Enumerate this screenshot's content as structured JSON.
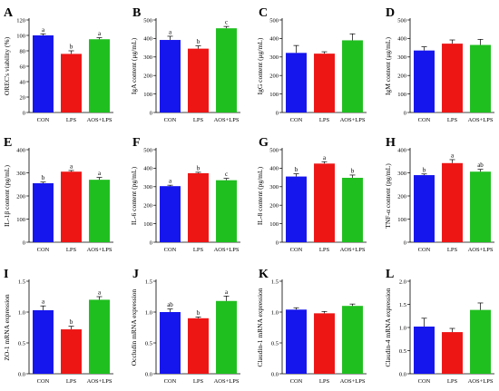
{
  "colors": {
    "CON": "#1515ee",
    "LPS": "#ee1515",
    "AOS+LPS": "#1fbf1f",
    "axis": "#000000"
  },
  "chart_data": [
    {
      "panel": "A",
      "type": "bar",
      "ylabel": "OREC's viability (%)",
      "ylim": [
        0,
        120
      ],
      "yticks": [
        0,
        20,
        40,
        60,
        80,
        100,
        120
      ],
      "categories": [
        "CON",
        "LPS",
        "AOS+LPS"
      ],
      "values": [
        100,
        76,
        95
      ],
      "errors": [
        2,
        4,
        2
      ],
      "letters": [
        "a",
        "b",
        "a"
      ]
    },
    {
      "panel": "B",
      "type": "bar",
      "ylabel": "IgA content (μg/mL)",
      "ylim": [
        0,
        500
      ],
      "yticks": [
        0,
        100,
        200,
        300,
        400,
        500
      ],
      "categories": [
        "CON",
        "LPS",
        "AOS+LPS"
      ],
      "values": [
        392,
        345,
        455
      ],
      "errors": [
        20,
        15,
        10
      ],
      "letters": [
        "a",
        "b",
        "c"
      ]
    },
    {
      "panel": "C",
      "type": "bar",
      "ylabel": "IgG content (μg/mL)",
      "ylim": [
        0,
        500
      ],
      "yticks": [
        0,
        100,
        200,
        300,
        400,
        500
      ],
      "categories": [
        "CON",
        "LPS",
        "AOS+LPS"
      ],
      "values": [
        322,
        318,
        390
      ],
      "errors": [
        40,
        10,
        35
      ],
      "letters": []
    },
    {
      "panel": "D",
      "type": "bar",
      "ylabel": "IgM content (μg/mL)",
      "ylim": [
        0,
        500
      ],
      "yticks": [
        0,
        100,
        200,
        300,
        400,
        500
      ],
      "categories": [
        "CON",
        "LPS",
        "AOS+LPS"
      ],
      "values": [
        335,
        372,
        365
      ],
      "errors": [
        20,
        20,
        30
      ],
      "letters": []
    },
    {
      "panel": "E",
      "type": "bar",
      "ylabel": "IL-1β content (pg/mL)",
      "ylim": [
        0,
        400
      ],
      "yticks": [
        0,
        100,
        200,
        300,
        400
      ],
      "categories": [
        "CON",
        "LPS",
        "AOS+LPS"
      ],
      "values": [
        255,
        305,
        270
      ],
      "errors": [
        5,
        5,
        10
      ],
      "letters": [
        "b",
        "a",
        "a"
      ]
    },
    {
      "panel": "F",
      "type": "bar",
      "ylabel": "IL-6 content (pg/mL)",
      "ylim": [
        0,
        500
      ],
      "yticks": [
        0,
        100,
        200,
        300,
        400,
        500
      ],
      "categories": [
        "CON",
        "LPS",
        "AOS+LPS"
      ],
      "values": [
        303,
        373,
        335
      ],
      "errors": [
        5,
        5,
        10
      ],
      "letters": [
        "a",
        "b",
        "c"
      ]
    },
    {
      "panel": "G",
      "type": "bar",
      "ylabel": "IL-8 content (pg/mL)",
      "ylim": [
        0,
        500
      ],
      "yticks": [
        0,
        100,
        200,
        300,
        400,
        500
      ],
      "categories": [
        "CON",
        "LPS",
        "AOS+LPS"
      ],
      "values": [
        355,
        425,
        348
      ],
      "errors": [
        15,
        10,
        15
      ],
      "letters": [
        "b",
        "a",
        "b"
      ]
    },
    {
      "panel": "H",
      "type": "bar",
      "ylabel": "TNF-α content (pg/mL)",
      "ylim": [
        0,
        400
      ],
      "yticks": [
        0,
        100,
        200,
        300,
        400
      ],
      "categories": [
        "CON",
        "LPS",
        "AOS+LPS"
      ],
      "values": [
        290,
        342,
        305
      ],
      "errors": [
        5,
        15,
        10
      ],
      "letters": [
        "b",
        "a",
        "ab"
      ]
    },
    {
      "panel": "I",
      "type": "bar",
      "ylabel": "ZO-1 mRNA expression",
      "ylim": [
        0,
        1.5
      ],
      "yticks": [
        0.0,
        0.5,
        1.0,
        1.5
      ],
      "categories": [
        "CON",
        "LPS",
        "AOS+LPS"
      ],
      "values": [
        1.03,
        0.72,
        1.2
      ],
      "errors": [
        0.07,
        0.05,
        0.05
      ],
      "letters": [
        "a",
        "b",
        "a"
      ]
    },
    {
      "panel": "J",
      "type": "bar",
      "ylabel": "Occludin mRNA expression",
      "ylim": [
        0,
        1.5
      ],
      "yticks": [
        0.0,
        0.5,
        1.0,
        1.5
      ],
      "categories": [
        "CON",
        "LPS",
        "AOS+LPS"
      ],
      "values": [
        1.0,
        0.9,
        1.18
      ],
      "errors": [
        0.05,
        0.02,
        0.08
      ],
      "letters": [
        "ab",
        "b",
        "a"
      ]
    },
    {
      "panel": "K",
      "type": "bar",
      "ylabel": "Claudin-1 mRNA expression",
      "ylim": [
        0,
        1.5
      ],
      "yticks": [
        0.0,
        0.5,
        1.0,
        1.5
      ],
      "categories": [
        "CON",
        "LPS",
        "AOS+LPS"
      ],
      "values": [
        1.04,
        0.98,
        1.1
      ],
      "errors": [
        0.03,
        0.03,
        0.03
      ],
      "letters": []
    },
    {
      "panel": "L",
      "type": "bar",
      "ylabel": "Claudin-4 mRNA expression",
      "ylim": [
        0,
        2.0
      ],
      "yticks": [
        0.0,
        0.5,
        1.0,
        1.5,
        2.0
      ],
      "categories": [
        "CON",
        "LPS",
        "AOS+LPS"
      ],
      "values": [
        1.02,
        0.9,
        1.38
      ],
      "errors": [
        0.18,
        0.08,
        0.15
      ],
      "letters": []
    }
  ]
}
